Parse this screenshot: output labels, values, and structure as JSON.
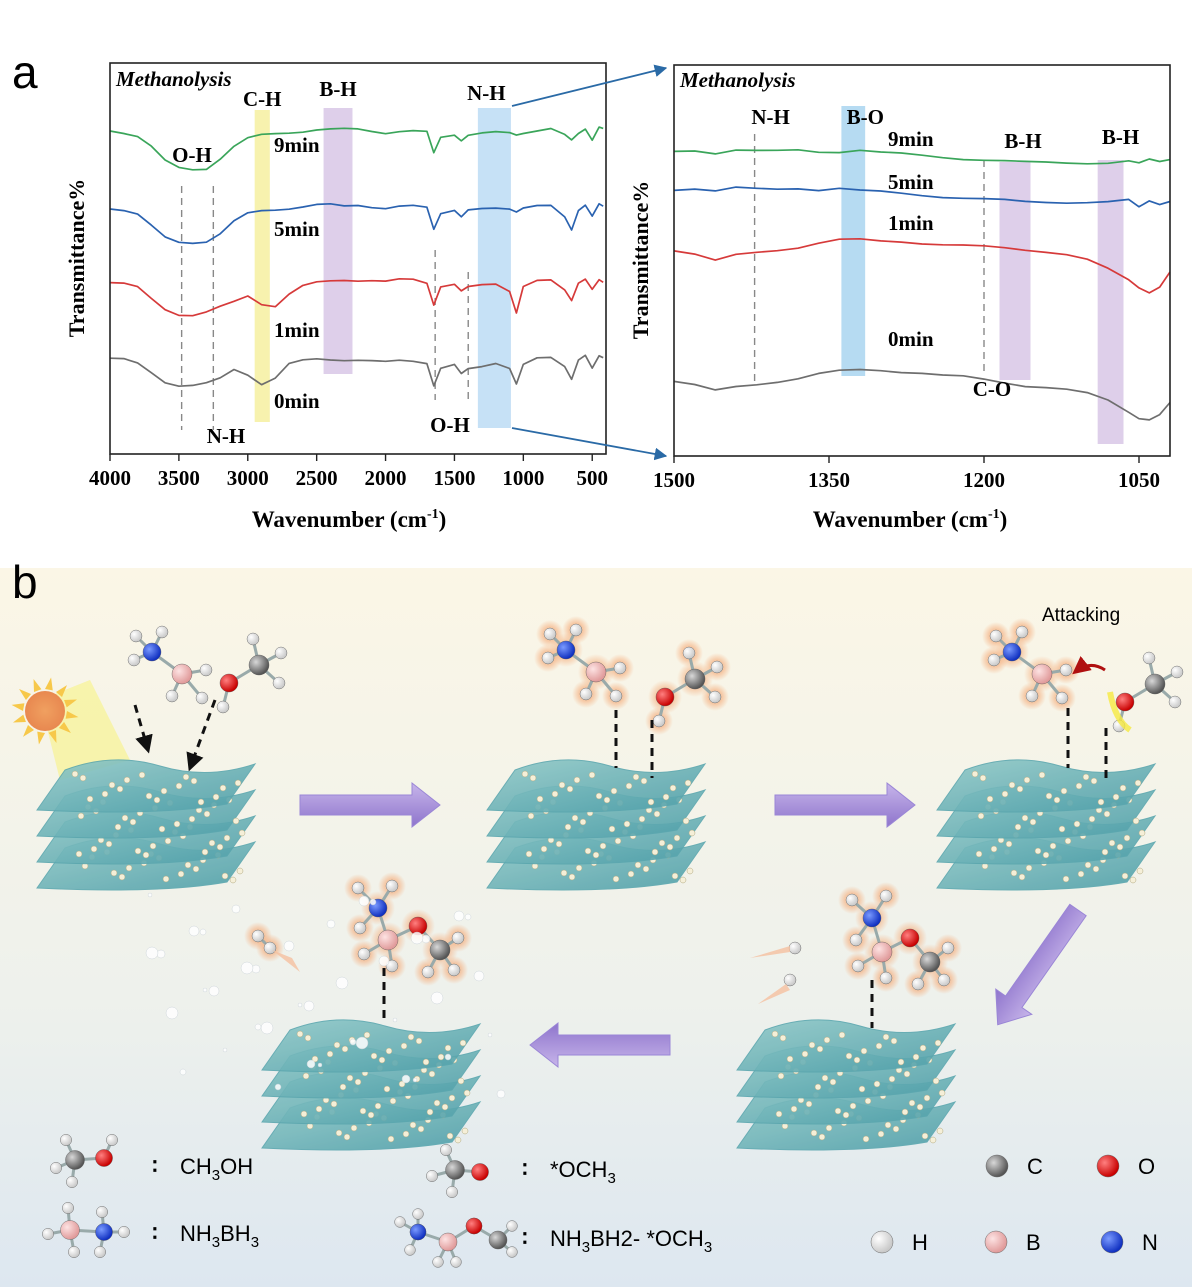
{
  "panel_a": {
    "letter": "a",
    "charts": [
      {
        "type": "line",
        "title": "Methanolysis",
        "xlabel": "Wavenumber (cm-1)",
        "ylabel": "Transmittance%",
        "xlim": [
          4000,
          400
        ],
        "xreversed": true,
        "xticks": [
          4000,
          3500,
          3000,
          2500,
          2000,
          1500,
          1000,
          500
        ],
        "yticks_shown": false,
        "series": [
          {
            "name": "9min",
            "color": "#3aa55a",
            "x": [
              4000,
              3900,
              3800,
              3700,
              3600,
              3500,
              3400,
              3300,
              3200,
              3100,
              3000,
              2900,
              2800,
              2700,
              2600,
              2500,
              2400,
              2300,
              2200,
              2100,
              2000,
              1900,
              1800,
              1700,
              1650,
              1600,
              1500,
              1450,
              1400,
              1300,
              1200,
              1100,
              1050,
              1000,
              900,
              800,
              700,
              650,
              600,
              550,
              500,
              450,
              420
            ],
            "y": [
              4.0,
              3.95,
              3.85,
              3.5,
              3.0,
              2.75,
              2.7,
              2.75,
              3.1,
              3.5,
              3.75,
              3.85,
              3.9,
              3.95,
              4.0,
              4.05,
              4.05,
              4.05,
              4.05,
              4.0,
              3.95,
              4.0,
              4.0,
              3.95,
              3.25,
              3.8,
              3.9,
              3.7,
              3.85,
              3.9,
              3.95,
              3.95,
              3.9,
              3.95,
              4.0,
              4.05,
              3.85,
              3.7,
              3.95,
              4.1,
              3.7,
              4.1,
              4.05
            ]
          },
          {
            "name": "5min",
            "color": "#2a62b0",
            "x": [
              4000,
              3900,
              3800,
              3700,
              3600,
              3500,
              3400,
              3300,
              3200,
              3100,
              3000,
              2900,
              2800,
              2700,
              2600,
              2500,
              2400,
              2300,
              2200,
              2100,
              2000,
              1900,
              1800,
              1700,
              1650,
              1600,
              1500,
              1450,
              1400,
              1300,
              1200,
              1100,
              1050,
              1000,
              900,
              800,
              700,
              650,
              600,
              550,
              500,
              450,
              420
            ],
            "y": [
              2.9,
              2.85,
              2.7,
              2.3,
              1.9,
              1.75,
              1.75,
              1.8,
              2.05,
              2.45,
              2.7,
              2.8,
              2.85,
              2.9,
              2.95,
              3.0,
              3.0,
              2.95,
              3.0,
              2.95,
              2.9,
              2.95,
              2.95,
              2.9,
              2.2,
              2.75,
              2.85,
              2.6,
              2.8,
              2.85,
              2.9,
              2.9,
              2.8,
              2.9,
              2.95,
              2.95,
              2.6,
              2.2,
              2.85,
              3.0,
              2.6,
              3.0,
              2.95
            ]
          },
          {
            "name": "1min",
            "color": "#d63a3a",
            "x": [
              4000,
              3900,
              3800,
              3700,
              3600,
              3500,
              3400,
              3300,
              3200,
              3100,
              3000,
              2900,
              2800,
              2700,
              2600,
              2500,
              2400,
              2300,
              2200,
              2100,
              2000,
              1900,
              1800,
              1700,
              1650,
              1600,
              1500,
              1450,
              1400,
              1300,
              1200,
              1100,
              1050,
              1000,
              900,
              800,
              700,
              650,
              600,
              550,
              500,
              450,
              420
            ],
            "y": [
              1.8,
              1.75,
              1.6,
              1.2,
              0.85,
              0.7,
              0.7,
              0.8,
              0.95,
              1.1,
              1.3,
              1.05,
              1.0,
              1.4,
              1.65,
              1.75,
              1.8,
              1.85,
              1.85,
              1.85,
              1.8,
              1.85,
              1.85,
              1.75,
              1.05,
              1.65,
              1.7,
              1.45,
              1.6,
              1.7,
              1.75,
              1.5,
              0.75,
              1.6,
              1.8,
              1.85,
              1.55,
              1.2,
              1.75,
              1.85,
              1.5,
              1.85,
              1.8
            ]
          },
          {
            "name": "0min",
            "color": "#6e6e6e",
            "x": [
              4000,
              3900,
              3800,
              3700,
              3600,
              3500,
              3400,
              3300,
              3200,
              3100,
              3000,
              2900,
              2800,
              2700,
              2600,
              2500,
              2400,
              2300,
              2200,
              2100,
              2000,
              1900,
              1800,
              1700,
              1650,
              1600,
              1500,
              1450,
              1400,
              1300,
              1200,
              1100,
              1050,
              1000,
              900,
              800,
              700,
              650,
              600,
              550,
              500,
              450,
              420
            ],
            "y": [
              0.95,
              0.9,
              0.75,
              0.45,
              0.15,
              0.05,
              0.05,
              0.1,
              0.25,
              0.55,
              0.4,
              0.1,
              0.3,
              0.75,
              0.85,
              0.9,
              0.9,
              0.9,
              0.9,
              0.85,
              0.8,
              0.85,
              0.85,
              0.8,
              0.05,
              0.6,
              0.7,
              0.4,
              0.6,
              0.7,
              0.8,
              0.6,
              0.05,
              0.7,
              0.95,
              1.0,
              0.7,
              0.25,
              0.85,
              1.0,
              0.6,
              1.05,
              1.0
            ]
          }
        ],
        "bands": [
          {
            "label": "C-H",
            "from": 2950,
            "to": 2840,
            "color": "#f6f0a0"
          },
          {
            "label": "B-H",
            "from": 2450,
            "to": 2240,
            "color": "#d8c7e6"
          },
          {
            "label": "N-H",
            "from": 1330,
            "to": 1090,
            "color": "#bcdcf4"
          }
        ],
        "dashed_lines": [
          3480,
          3250,
          1640,
          1400
        ],
        "annotations": [
          {
            "text": "O-H",
            "x": 3480,
            "pos": "above-9min"
          },
          {
            "text": "N-H",
            "x": 3250,
            "pos": "bottom"
          },
          {
            "text": "O-H",
            "x": 1640,
            "pos": "bottom"
          }
        ]
      },
      {
        "type": "line",
        "title": "Methanolysis",
        "xlabel": "Wavenumber (cm-1)",
        "ylabel": "Transmittance%",
        "xlim": [
          1500,
          1020
        ],
        "xreversed": true,
        "xticks": [
          1500,
          1350,
          1200,
          1050
        ],
        "yticks_shown": false,
        "series": [
          {
            "name": "9min",
            "color": "#3aa55a",
            "x": [
              1500,
              1480,
              1460,
              1440,
              1420,
              1400,
              1380,
              1360,
              1340,
              1320,
              1300,
              1280,
              1260,
              1240,
              1220,
              1200,
              1180,
              1160,
              1140,
              1120,
              1100,
              1080,
              1060,
              1050,
              1040,
              1030,
              1020
            ],
            "y": [
              3.95,
              4.0,
              3.9,
              4.0,
              3.95,
              3.95,
              4.0,
              3.95,
              3.95,
              4.0,
              3.9,
              3.85,
              3.8,
              3.75,
              3.7,
              3.65,
              3.6,
              3.55,
              3.55,
              3.55,
              3.55,
              3.55,
              3.6,
              3.5,
              3.65,
              3.6,
              3.7
            ]
          },
          {
            "name": "5min",
            "color": "#2a62b0",
            "x": [
              1500,
              1480,
              1460,
              1440,
              1420,
              1400,
              1380,
              1360,
              1340,
              1320,
              1300,
              1280,
              1260,
              1240,
              1220,
              1200,
              1180,
              1160,
              1140,
              1120,
              1100,
              1080,
              1060,
              1050,
              1040,
              1030,
              1020
            ],
            "y": [
              3.1,
              3.15,
              3.05,
              3.15,
              3.1,
              3.1,
              3.15,
              3.1,
              3.15,
              3.05,
              3.0,
              2.95,
              2.9,
              2.85,
              2.8,
              2.75,
              2.7,
              2.65,
              2.65,
              2.65,
              2.65,
              2.65,
              2.7,
              2.45,
              2.7,
              2.6,
              2.7
            ]
          },
          {
            "name": "1min",
            "color": "#d63a3a",
            "x": [
              1500,
              1480,
              1460,
              1440,
              1420,
              1400,
              1380,
              1360,
              1340,
              1320,
              1300,
              1280,
              1260,
              1240,
              1220,
              1200,
              1180,
              1160,
              1140,
              1120,
              1100,
              1080,
              1060,
              1050,
              1040,
              1030,
              1020
            ],
            "y": [
              2.0,
              1.85,
              1.6,
              1.8,
              1.9,
              2.0,
              2.1,
              2.25,
              2.35,
              2.35,
              2.3,
              2.3,
              2.25,
              2.2,
              2.15,
              2.1,
              2.05,
              2.0,
              1.95,
              1.85,
              1.65,
              1.3,
              0.9,
              0.65,
              0.5,
              0.7,
              1.2
            ]
          },
          {
            "name": "0min",
            "color": "#6e6e6e",
            "x": [
              1500,
              1480,
              1460,
              1440,
              1420,
              1400,
              1380,
              1360,
              1340,
              1320,
              1300,
              1280,
              1260,
              1240,
              1220,
              1200,
              1180,
              1160,
              1140,
              1120,
              1100,
              1080,
              1060,
              1050,
              1040,
              1030,
              1020
            ],
            "y": [
              0.8,
              0.65,
              0.45,
              0.6,
              0.7,
              0.8,
              0.9,
              1.05,
              1.15,
              1.2,
              1.2,
              1.15,
              1.1,
              1.0,
              0.95,
              0.85,
              0.75,
              0.65,
              0.6,
              0.5,
              0.35,
              0.1,
              -0.3,
              -0.5,
              -0.55,
              -0.4,
              0.0
            ]
          }
        ],
        "bands": [
          {
            "label": "B-O",
            "from": 1338,
            "to": 1315,
            "color": "#a9d5f0"
          },
          {
            "label": "B-H",
            "from": 1185,
            "to": 1155,
            "color": "#d8c7e6"
          },
          {
            "label": "B-H",
            "from": 1090,
            "to": 1065,
            "color": "#d8c7e6"
          }
        ],
        "dashed_lines": [
          1422,
          1200
        ],
        "annotations": [
          {
            "text": "N-H",
            "x": 1422,
            "pos": "top"
          },
          {
            "text": "C-O",
            "x": 1200,
            "pos": "below-0min"
          }
        ]
      }
    ]
  },
  "panel_b": {
    "letter": "b",
    "attacking_label": "Attacking",
    "legend": {
      "species": [
        {
          "formula": "CH3OH",
          "label_main": "CH",
          "sub1": "3",
          "mid": "OH",
          "sub2": "",
          "tail": ""
        },
        {
          "formula": "NH3BH3",
          "label_main": "NH",
          "sub1": "3",
          "mid": "BH",
          "sub2": "3",
          "tail": ""
        },
        {
          "formula": "*OCH3",
          "label_main": "*OCH",
          "sub1": "3",
          "mid": "",
          "sub2": "",
          "tail": ""
        },
        {
          "formula": "NH3BH2- *OCH3",
          "label_main": "NH",
          "sub1": "3",
          "mid": "BH2- *OCH",
          "sub2": "3",
          "tail": ""
        }
      ],
      "atoms": [
        {
          "symbol": "C",
          "color": "#7a7a7a"
        },
        {
          "symbol": "O",
          "color": "#e01818"
        },
        {
          "symbol": "H",
          "color": "#f4f4f4"
        },
        {
          "symbol": "B",
          "color": "#f2b8b8"
        },
        {
          "symbol": "N",
          "color": "#2a4ee0"
        }
      ]
    }
  }
}
